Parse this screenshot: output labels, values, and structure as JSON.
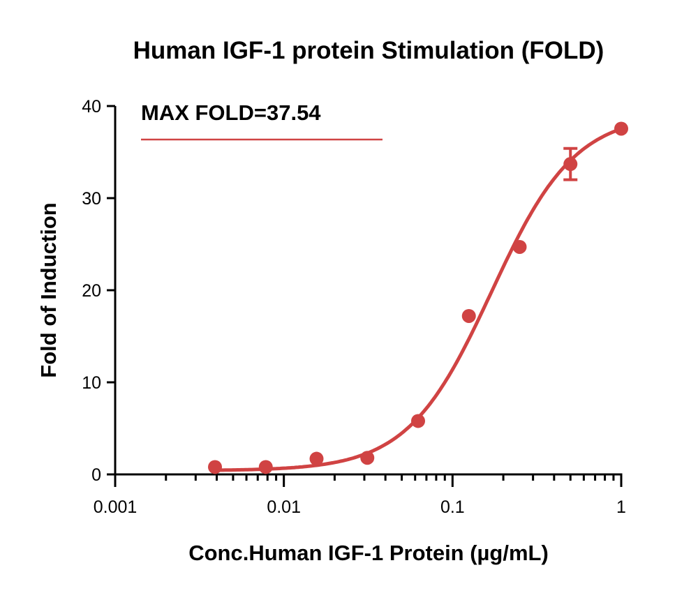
{
  "chart_data": {
    "type": "scatter",
    "title": "Human IGF-1 protein Stimulation (FOLD)",
    "xlabel": "Conc.Human IGF-1 Protein (µg/mL)",
    "ylabel": "Fold of Induction",
    "xscale": "log",
    "xlim": [
      0.001,
      1
    ],
    "ylim": [
      0,
      40
    ],
    "xticks": [
      {
        "v": 0.001,
        "label": "0.001"
      },
      {
        "v": 0.01,
        "label": "0.01"
      },
      {
        "v": 0.1,
        "label": "0.1"
      },
      {
        "v": 1,
        "label": "1"
      }
    ],
    "yticks": [
      {
        "v": 0,
        "label": "0"
      },
      {
        "v": 10,
        "label": "10"
      },
      {
        "v": 20,
        "label": "20"
      },
      {
        "v": 30,
        "label": "30"
      },
      {
        "v": 40,
        "label": "40"
      }
    ],
    "annotation": "MAX FOLD=37.54",
    "color": "#d04343",
    "series": [
      {
        "name": "Human IGF-1",
        "x": [
          0.00390625,
          0.0078125,
          0.015625,
          0.03125,
          0.0625,
          0.125,
          0.25,
          0.5,
          1
        ],
        "y": [
          0.8,
          0.8,
          1.7,
          1.8,
          5.8,
          17.2,
          24.7,
          33.7,
          37.54
        ],
        "err": [
          0,
          0,
          0,
          0,
          0,
          0,
          0,
          1.7,
          0
        ]
      }
    ],
    "fit": {
      "model": "4PL",
      "bottom": 0.4,
      "top": 39.2,
      "ec50": 0.17,
      "hill": 1.75
    }
  }
}
